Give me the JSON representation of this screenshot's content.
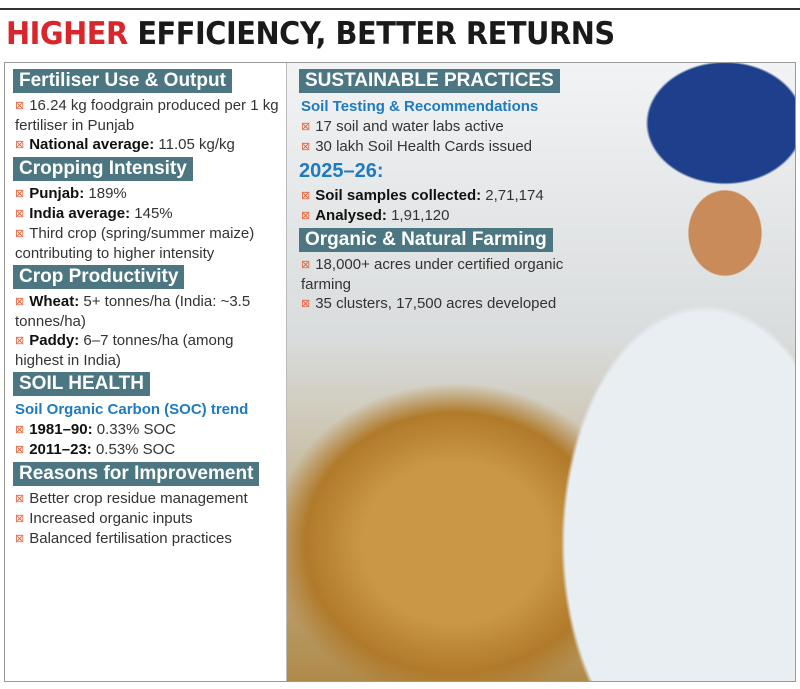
{
  "title": {
    "red": "HIGHER",
    "rest": " EFFICIENCY, BETTER RETURNS"
  },
  "colors": {
    "title_red": "#d8262c",
    "header_bg": "#4b7682",
    "subhead": "#1e7bbf",
    "bullet": "#e2603a"
  },
  "bullet_icon": "boxed-x-bullet-icon",
  "left": [
    {
      "header": "Fertiliser Use & Output",
      "items": [
        {
          "bold": "",
          "text": "16.24 kg foodgrain produced per 1 kg fertiliser in Punjab"
        },
        {
          "bold": "National average:",
          "text": " 11.05 kg/kg"
        }
      ]
    },
    {
      "header": "Cropping Intensity",
      "items": [
        {
          "bold": "Punjab:",
          "text": " 189%"
        },
        {
          "bold": "India average:",
          "text": " 145%"
        },
        {
          "bold": "",
          "text": "Third crop (spring/summer maize) contributing to higher intensity"
        }
      ]
    },
    {
      "header": "Crop Productivity",
      "items": [
        {
          "bold": "Wheat:",
          "text": " 5+ tonnes/ha (India: ~3.5 tonnes/ha)"
        },
        {
          "bold": "Paddy:",
          "text": " 6–7 tonnes/ha (among highest in India)"
        }
      ]
    },
    {
      "header": "SOIL HEALTH",
      "sub": "Soil Organic Carbon (SOC) trend",
      "items": [
        {
          "bold": "1981–90:",
          "text": " 0.33% SOC"
        },
        {
          "bold": "2011–23:",
          "text": " 0.53% SOC"
        }
      ]
    },
    {
      "header": "Reasons for Improvement",
      "items": [
        {
          "bold": "",
          "text": "Better crop residue management"
        },
        {
          "bold": "",
          "text": "Increased organic inputs"
        },
        {
          "bold": "",
          "text": "Balanced fertilisation practices"
        }
      ]
    }
  ],
  "right": {
    "header": "SUSTAINABLE PRACTICES",
    "sub": "Soil Testing & Recommendations",
    "items1": [
      {
        "bold": "",
        "text": "17 soil and water labs active"
      },
      {
        "bold": "",
        "text": "30 lakh Soil Health Cards issued"
      }
    ],
    "year": "2025–26:",
    "items2": [
      {
        "bold": "Soil samples collected:",
        "text": " 2,71,174"
      },
      {
        "bold": "Analysed:",
        "text": " 1,91,120"
      }
    ],
    "header2": "Organic & Natural Farming",
    "items3": [
      {
        "bold": "",
        "text": "18,000+ acres under certified organic farming"
      },
      {
        "bold": "",
        "text": "35 clusters, 17,500 acres developed"
      }
    ]
  }
}
